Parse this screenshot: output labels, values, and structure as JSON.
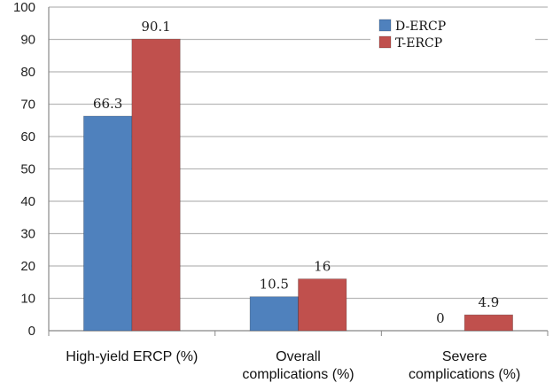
{
  "chart_data": {
    "type": "bar",
    "categories": [
      [
        "High-yield ERCP (%)"
      ],
      [
        "Overall",
        "complications (%)"
      ],
      [
        "Severe",
        "complications (%)"
      ]
    ],
    "series": [
      {
        "name": "D-ERCP",
        "values": [
          66.3,
          10.5,
          0
        ],
        "labels": [
          "66.3",
          "10.5",
          "0"
        ],
        "color": "#4f81bd"
      },
      {
        "name": "T-ERCP",
        "values": [
          90.1,
          16,
          4.9
        ],
        "labels": [
          "90.1",
          "16",
          "4.9"
        ],
        "color": "#c0504d"
      }
    ],
    "ylim": [
      0,
      100
    ],
    "yticks": [
      "0",
      "10",
      "20",
      "30",
      "40",
      "50",
      "60",
      "70",
      "80",
      "90",
      "100"
    ],
    "grid": true,
    "legend": "top-right"
  }
}
